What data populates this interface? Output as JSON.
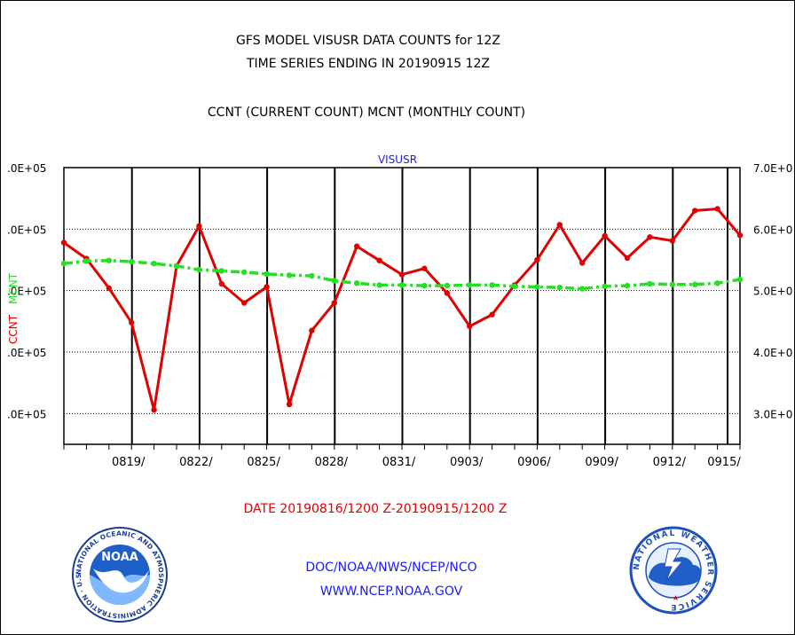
{
  "header": {
    "title_line1": "GFS MODEL VISUSR DATA COUNTS for 12Z",
    "title_line2": "TIME SERIES ENDING IN 20190915 12Z",
    "subtitle": "CCNT (CURRENT COUNT) MCNT (MONTHLY COUNT)"
  },
  "footer": {
    "date_range": "DATE 20190816/1200 Z-20190915/1200 Z",
    "org_line": "DOC/NOAA/NWS/NCEP/NCO",
    "url_line": "WWW.NCEP.NOAA.GOV"
  },
  "logos": {
    "noaa_text": "NOAA",
    "noaa_ring": "NATIONAL OCEANIC AND ATMOSPHERIC ADMINISTRATION · U.S. DEPARTMENT OF COMMERCE",
    "nws_ring": "NATIONAL WEATHER SERVICE"
  },
  "colors": {
    "ccnt": "#e00000",
    "mcnt": "#22e022",
    "label_blue": "#1a1aff"
  },
  "chart_data": {
    "type": "line",
    "title": "VISUSR",
    "x_labels": [
      "0819/",
      "0822/",
      "0825/",
      "0828/",
      "0831/",
      "0903/",
      "0906/",
      "0909/",
      "0912/",
      "0915/"
    ],
    "left_axis": {
      "label_ccnt": "CCNT",
      "label_mcnt": "MCNT",
      "ticks": [
        ".0E+05",
        ".0E+05",
        ".0E+05",
        ".0E+05",
        ".0E+05"
      ]
    },
    "right_axis": {
      "ticks": [
        "7.0E+0",
        "6.0E+0",
        "5.0E+0",
        "4.0E+0",
        "3.0E+0"
      ],
      "ylim": [
        250000,
        700000
      ]
    },
    "grid": true,
    "series": [
      {
        "name": "CCNT",
        "color": "#e00000",
        "style": "solid",
        "x": [
          "0816",
          "0817",
          "0818",
          "0819",
          "0820",
          "0821",
          "0822",
          "0823",
          "0824",
          "0825",
          "0826",
          "0827",
          "0828",
          "0829",
          "0830",
          "0831",
          "0901",
          "0902",
          "0903",
          "0904",
          "0905",
          "0906",
          "0907",
          "0908",
          "0909",
          "0910",
          "0911",
          "0912",
          "0913",
          "0914",
          "0915"
        ],
        "values": [
          578000,
          552000,
          504000,
          448000,
          306000,
          540000,
          605000,
          511000,
          480000,
          506000,
          315000,
          435000,
          480000,
          572000,
          549000,
          526000,
          536000,
          496000,
          442000,
          461000,
          509000,
          550000,
          607000,
          545000,
          589000,
          553000,
          587000,
          581000,
          630000,
          633000,
          590000
        ]
      },
      {
        "name": "MCNT",
        "color": "#22e022",
        "style": "dash-dot",
        "x": [
          "0816",
          "0817",
          "0818",
          "0819",
          "0820",
          "0821",
          "0822",
          "0823",
          "0824",
          "0825",
          "0826",
          "0827",
          "0828",
          "0829",
          "0830",
          "0831",
          "0901",
          "0902",
          "0903",
          "0904",
          "0905",
          "0906",
          "0907",
          "0908",
          "0909",
          "0910",
          "0911",
          "0912",
          "0913",
          "0914",
          "0915"
        ],
        "values": [
          544000,
          548000,
          549000,
          547000,
          544000,
          540000,
          534000,
          532000,
          530000,
          527000,
          525000,
          524000,
          516000,
          512000,
          509000,
          509000,
          508000,
          508000,
          509000,
          509000,
          507000,
          506000,
          505000,
          503000,
          507000,
          508000,
          511000,
          510000,
          510000,
          512000,
          518000
        ]
      }
    ]
  }
}
